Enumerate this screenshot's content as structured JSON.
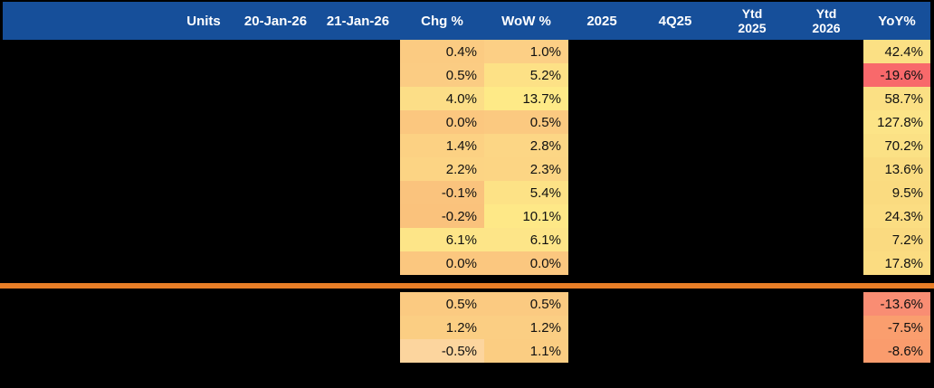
{
  "table": {
    "header": {
      "label": "",
      "units": "Units",
      "date_prev": "20-Jan-26",
      "date_curr": "21-Jan-26",
      "chg": "Chg %",
      "wow": "WoW %",
      "year_2025": "2025",
      "q4_25": "4Q25",
      "ytd_2025_line1": "Ytd",
      "ytd_2025_line2": "2025",
      "ytd_2026_line1": "Ytd",
      "ytd_2026_line2": "2026",
      "yoy": "YoY%"
    },
    "colors": {
      "header_bg": "#164F9A",
      "header_text": "#FFFFFF",
      "divider_orange": "#E87E27",
      "background": "#000000",
      "heat_red": "#F8696B",
      "heat_orange": "#FBC77F",
      "heat_yellow": "#FEEA87"
    },
    "sections": [
      {
        "rows": [
          {
            "chg": "0.4%",
            "chg_bg": "#FBCB82",
            "wow": "1.0%",
            "wow_bg": "#FCCF85",
            "yoy": "42.4%",
            "yoy_bg": "#FBE084"
          },
          {
            "chg": "0.5%",
            "chg_bg": "#FBCC83",
            "wow": "5.2%",
            "wow_bg": "#FDE186",
            "yoy": "-19.6%",
            "yoy_bg": "#F8696B"
          },
          {
            "chg": "4.0%",
            "chg_bg": "#FCDE87",
            "wow": "13.7%",
            "wow_bg": "#FEEA87",
            "yoy": "58.7%",
            "yoy_bg": "#FBE084"
          },
          {
            "chg": "0.0%",
            "chg_bg": "#FBC77F",
            "wow": "0.5%",
            "wow_bg": "#FBC980",
            "yoy": "127.8%",
            "yoy_bg": "#FCE487"
          },
          {
            "chg": "1.4%",
            "chg_bg": "#FCD183",
            "wow": "2.8%",
            "wow_bg": "#FCD685",
            "yoy": "70.2%",
            "yoy_bg": "#FBE185"
          },
          {
            "chg": "2.2%",
            "chg_bg": "#FCD484",
            "wow": "2.3%",
            "wow_bg": "#FCD584",
            "yoy": "13.6%",
            "yoy_bg": "#FADC81"
          },
          {
            "chg": "-0.1%",
            "chg_bg": "#FAC37D",
            "wow": "5.4%",
            "wow_bg": "#FDE286",
            "yoy": "9.5%",
            "yoy_bg": "#FADB80"
          },
          {
            "chg": "-0.2%",
            "chg_bg": "#FAC27C",
            "wow": "10.1%",
            "wow_bg": "#FEE887",
            "yoy": "24.3%",
            "yoy_bg": "#FBDD82"
          },
          {
            "chg": "6.1%",
            "chg_bg": "#FDE588",
            "wow": "6.1%",
            "wow_bg": "#FDE588",
            "yoy": "7.2%",
            "yoy_bg": "#FADA80"
          },
          {
            "chg": "0.0%",
            "chg_bg": "#FBC77F",
            "wow": "0.0%",
            "wow_bg": "#FBC77F",
            "yoy": "17.8%",
            "yoy_bg": "#FBDC81"
          }
        ]
      },
      {
        "rows": [
          {
            "chg": "0.5%",
            "chg_bg": "#FBCA81",
            "wow": "0.5%",
            "wow_bg": "#FBCA81",
            "yoy": "-13.6%",
            "yoy_bg": "#F98D73"
          },
          {
            "chg": "1.2%",
            "chg_bg": "#FBCE83",
            "wow": "1.2%",
            "wow_bg": "#FBCE83",
            "yoy": "-7.5%",
            "yoy_bg": "#FA9E6E"
          },
          {
            "chg": "-0.5%",
            "chg_bg": "#FCD59E",
            "wow": "1.1%",
            "wow_bg": "#FBCD82",
            "yoy": "-8.6%",
            "yoy_bg": "#FA9C6D"
          }
        ]
      }
    ]
  }
}
